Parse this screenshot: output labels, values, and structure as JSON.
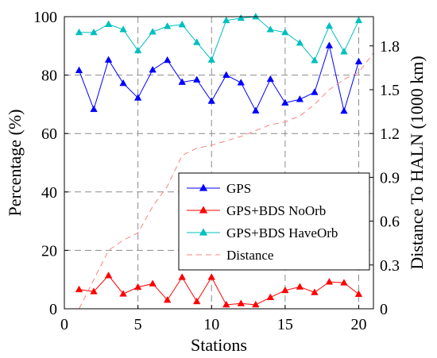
{
  "chart_data": {
    "type": "line",
    "x": [
      1,
      2,
      3,
      4,
      5,
      6,
      7,
      8,
      9,
      10,
      11,
      12,
      13,
      14,
      15,
      16,
      17,
      18,
      19,
      20
    ],
    "xlabel": "Stations",
    "ylabel": "Percentage (%)",
    "y2label": "Distance To HALN (1000 km)",
    "xlim": [
      0,
      21
    ],
    "ylim": [
      0,
      100
    ],
    "y2lim": [
      0,
      2
    ],
    "xticks": [
      "0",
      "5",
      "10",
      "15",
      "20"
    ],
    "yticks": [
      "0",
      "20",
      "40",
      "60",
      "80",
      "100"
    ],
    "y2ticks": [
      "0",
      "0.3",
      "0.6",
      "0.9",
      "1.2",
      "1.5",
      "1.8"
    ],
    "grid": true,
    "legend_position": "center-right",
    "series": [
      {
        "name": "GPS",
        "axis": "left",
        "color": "#0000ff",
        "marker": "triangle",
        "values": [
          81.6,
          68.3,
          85.2,
          77.2,
          72.2,
          81.8,
          85.1,
          77.6,
          78.4,
          71.1,
          80.0,
          77.4,
          67.8,
          78.6,
          70.5,
          71.7,
          74.1,
          90.1,
          67.7,
          84.6
        ]
      },
      {
        "name": "GPS+BDS NoOrb",
        "axis": "left",
        "color": "#ff0000",
        "marker": "triangle",
        "values": [
          6.6,
          5.9,
          11.4,
          5.1,
          7.4,
          8.6,
          3.0,
          10.8,
          2.5,
          10.8,
          1.4,
          1.8,
          1.4,
          3.9,
          6.3,
          7.5,
          5.6,
          9.2,
          8.9,
          5.0
        ]
      },
      {
        "name": "GPS+BDS HaveOrb",
        "axis": "left",
        "color": "#00bfbf",
        "marker": "triangle",
        "values": [
          94.6,
          94.6,
          97.4,
          95.6,
          88.4,
          94.8,
          96.7,
          97.3,
          91.2,
          85.2,
          98.7,
          99.5,
          100.0,
          95.6,
          94.6,
          91.0,
          85.0,
          96.8,
          88.0,
          98.7
        ]
      },
      {
        "name": "Distance",
        "axis": "right",
        "color": "#ff8080",
        "style": "dashed",
        "x": [
          1,
          2,
          3,
          4,
          5,
          6,
          7,
          8,
          9,
          10,
          11,
          12,
          13,
          14,
          15,
          16,
          17,
          18,
          19,
          20,
          21
        ],
        "values": [
          0.0,
          0.2,
          0.4,
          0.47,
          0.52,
          0.7,
          0.84,
          1.05,
          1.1,
          1.12,
          1.15,
          1.18,
          1.22,
          1.26,
          1.28,
          1.32,
          1.4,
          1.5,
          1.57,
          1.62,
          1.75
        ]
      }
    ]
  }
}
